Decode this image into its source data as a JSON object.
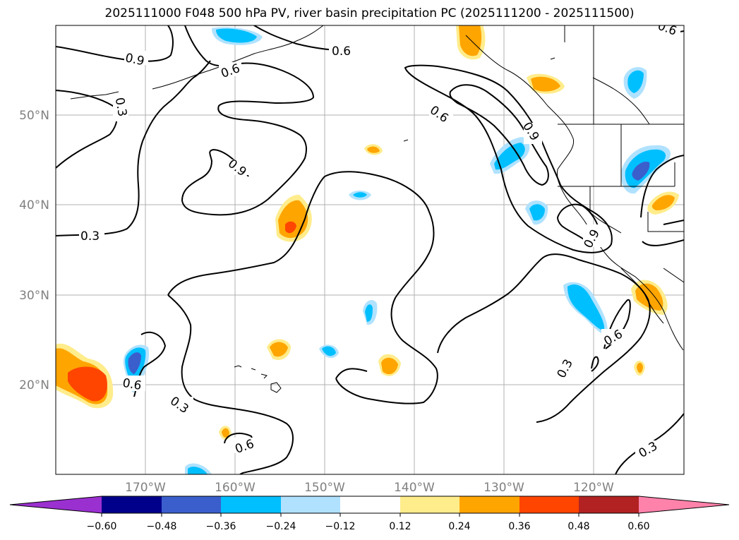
{
  "title": "2025111000 F048 500 hPa PV, river basin precipitation PC (2025111200 - 2025111500)",
  "map": {
    "lat_labels": [
      "50°N",
      "40°N",
      "30°N",
      "20°N"
    ],
    "lon_labels": [
      "170°W",
      "160°W",
      "150°W",
      "140°W",
      "130°W",
      "120°W"
    ],
    "contour_labels": [
      "0.9",
      "0.6",
      "0.6",
      "0.3",
      "0.9",
      "0.6",
      "0.9",
      "0.3",
      "0.9",
      "0.6",
      "0.3",
      "0.3",
      "0.6",
      "0.6",
      "0.3",
      "0.6"
    ]
  },
  "colorbar": {
    "ticks": [
      "−0.60",
      "−0.48",
      "−0.36",
      "−0.24",
      "−0.12",
      "0.12",
      "0.24",
      "0.36",
      "0.48",
      "0.60"
    ],
    "colors": {
      "under": "#9b30d0",
      "bins": [
        "#00008b",
        "#3a5fcd",
        "#00bfff",
        "#b0e2ff",
        "#ffffff",
        "#ffec8b",
        "#ffa500",
        "#ff4500",
        "#b22222"
      ],
      "over": "#ff82ab"
    }
  }
}
